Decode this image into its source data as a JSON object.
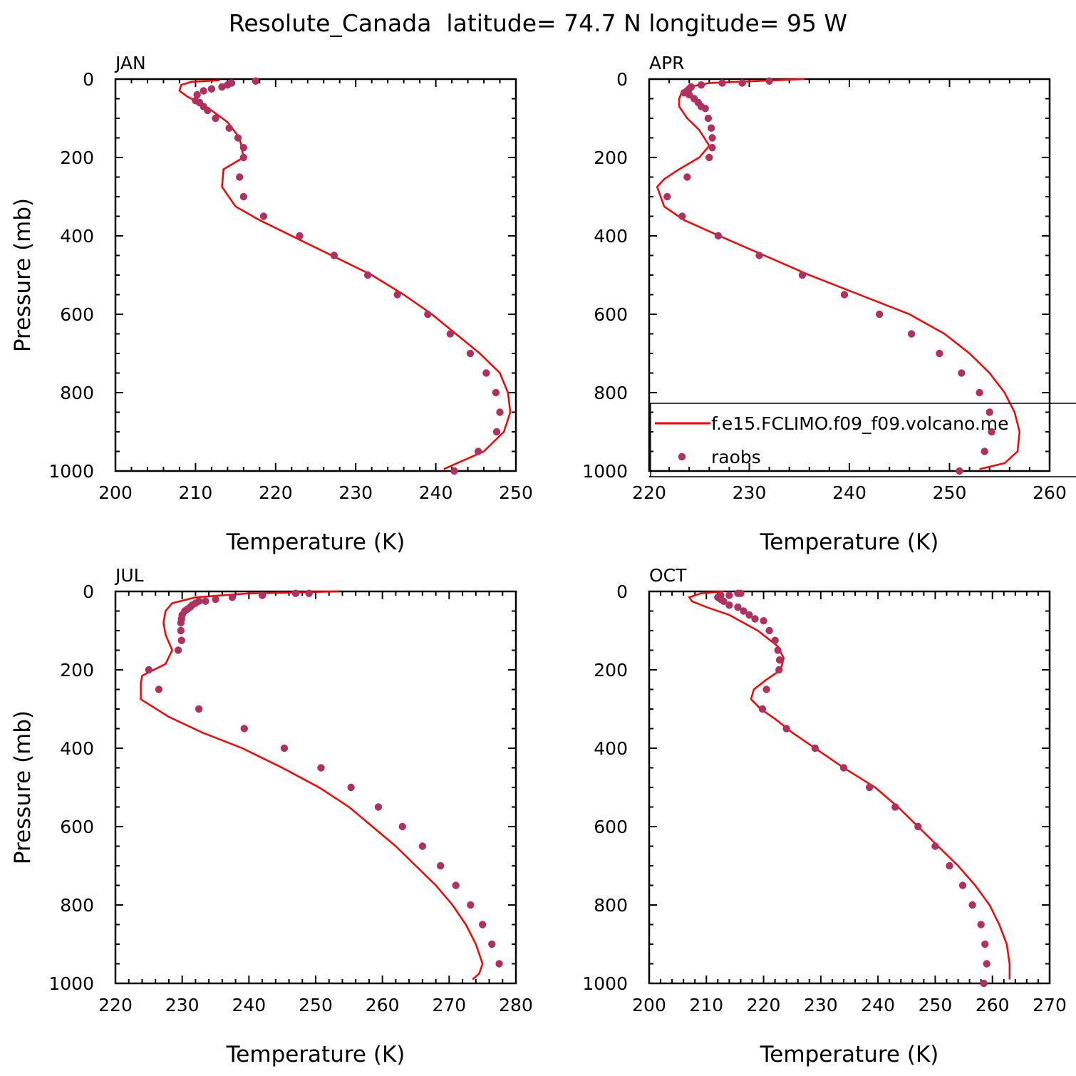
{
  "figure": {
    "title": "Resolute_Canada  latitude= 74.7 N longitude= 95 W"
  },
  "legend": {
    "placement": "lower-right of APR panel",
    "model_label": "f.e15.FCLIMO.f09_f09.volcano.me",
    "obs_label": "raobs"
  },
  "colors": {
    "model_line": "#ff0000",
    "obs_marker": "#b03060"
  },
  "chart_data": [
    {
      "type": "line+scatter",
      "panel_label": "JAN",
      "xlabel": "Temperature (K)",
      "ylabel": "Pressure (mb)",
      "xlim": [
        200,
        250
      ],
      "ylim": [
        1000,
        0
      ],
      "xticks": [
        200,
        210,
        220,
        230,
        240,
        250
      ],
      "yticks": [
        0,
        200,
        400,
        600,
        800,
        1000
      ],
      "model": {
        "name": "f.e15.FCLIMO.f09_f09.volcano.me",
        "t": [
          213.0,
          209.5,
          208.2,
          208.0,
          209.0,
          210.5,
          212.0,
          214.0,
          215.5,
          216.0,
          213.5,
          213.3,
          215.0,
          218.0,
          222.0,
          227.0,
          232.0,
          236.0,
          239.5,
          242.5,
          245.5,
          248.0,
          249.0,
          249.3,
          248.5,
          246.0,
          241.0
        ],
        "p": [
          3,
          7,
          15,
          30,
          45,
          60,
          80,
          110,
          150,
          200,
          230,
          275,
          325,
          360,
          400,
          450,
          500,
          550,
          600,
          650,
          700,
          750,
          800,
          850,
          900,
          950,
          995
        ]
      },
      "obs": {
        "name": "raobs",
        "t": [
          217.5,
          214.5,
          214.0,
          213.3,
          212.0,
          211.0,
          210.2,
          210.0,
          210.5,
          211.0,
          211.5,
          212.5,
          214.2,
          215.3,
          216.0,
          216.0,
          215.5,
          216.0,
          218.5,
          223.0,
          227.3,
          231.5,
          235.2,
          239.0,
          241.8,
          244.3,
          246.3,
          247.5,
          248.0,
          247.6,
          245.3,
          242.3
        ],
        "p": [
          5,
          10,
          15,
          20,
          25,
          30,
          40,
          55,
          60,
          70,
          80,
          100,
          125,
          150,
          175,
          200,
          250,
          300,
          350,
          400,
          450,
          500,
          550,
          600,
          650,
          700,
          750,
          800,
          850,
          900,
          950,
          1000
        ]
      }
    },
    {
      "type": "line+scatter",
      "panel_label": "APR",
      "xlabel": "Temperature (K)",
      "ylabel": "",
      "xlim": [
        220,
        260
      ],
      "ylim": [
        1000,
        0
      ],
      "xticks": [
        220,
        230,
        240,
        250,
        260
      ],
      "yticks": [
        0,
        200,
        400,
        600,
        800,
        1000
      ],
      "model": {
        "name": "f.e15.FCLIMO.f09_f09.volcano.me",
        "t": [
          235.5,
          226.0,
          224.0,
          223.3,
          223.0,
          223.0,
          223.8,
          225.0,
          226.0,
          225.0,
          223.0,
          221.5,
          220.8,
          221.5,
          223.5,
          227.0,
          231.5,
          236.0,
          241.0,
          246.0,
          249.5,
          252.0,
          254.0,
          255.5,
          256.5,
          257.0,
          256.8,
          255.5,
          253.0
        ],
        "p": [
          0,
          10,
          20,
          30,
          50,
          70,
          100,
          130,
          170,
          200,
          230,
          255,
          275,
          325,
          360,
          400,
          450,
          500,
          550,
          600,
          650,
          700,
          750,
          800,
          850,
          900,
          950,
          980,
          995
        ]
      },
      "obs": {
        "name": "raobs",
        "t": [
          232.0,
          229.3,
          227.3,
          225.2,
          224.2,
          224.0,
          223.8,
          223.5,
          224.0,
          224.5,
          224.9,
          225.2,
          225.6,
          225.9,
          226.2,
          226.3,
          226.3,
          226.0,
          223.8,
          221.8,
          223.3,
          226.9,
          231.0,
          235.3,
          239.5,
          243.0,
          246.2,
          249.0,
          251.2,
          253.0,
          254.0,
          254.2,
          253.5,
          251.0
        ],
        "p": [
          5,
          10,
          10,
          15,
          20,
          25,
          30,
          35,
          40,
          50,
          60,
          70,
          75,
          100,
          125,
          150,
          175,
          200,
          250,
          300,
          350,
          400,
          450,
          500,
          550,
          600,
          650,
          700,
          750,
          800,
          850,
          900,
          950,
          1000
        ]
      }
    },
    {
      "type": "line+scatter",
      "panel_label": "JUL",
      "xlabel": "Temperature (K)",
      "ylabel": "Pressure (mb)",
      "xlim": [
        220,
        280
      ],
      "ylim": [
        1000,
        0
      ],
      "xticks": [
        220,
        230,
        240,
        250,
        260,
        270,
        280
      ],
      "yticks": [
        0,
        200,
        400,
        600,
        800,
        1000
      ],
      "model": {
        "name": "f.e15.FCLIMO.f09_f09.volcano.me",
        "t": [
          253.5,
          240.0,
          232.0,
          228.5,
          227.5,
          227.2,
          227.5,
          228.5,
          227.5,
          224.0,
          223.8,
          223.8,
          228.0,
          233.0,
          239.0,
          245.0,
          250.5,
          255.0,
          258.5,
          262.0,
          265.0,
          268.0,
          270.5,
          272.5,
          274.0,
          275.0,
          274.5,
          273.5
        ],
        "p": [
          0,
          5,
          15,
          30,
          50,
          80,
          110,
          150,
          185,
          215,
          235,
          275,
          320,
          360,
          400,
          450,
          500,
          550,
          600,
          650,
          700,
          750,
          800,
          850,
          900,
          950,
          975,
          990
        ]
      },
      "obs": {
        "name": "raobs",
        "t": [
          249.0,
          247.0,
          242.0,
          237.5,
          235.0,
          233.5,
          232.5,
          232.0,
          231.5,
          231.2,
          230.8,
          230.4,
          230.0,
          229.9,
          229.8,
          229.8,
          229.9,
          229.4,
          225.0,
          226.5,
          232.5,
          239.3,
          245.3,
          250.8,
          255.3,
          259.4,
          263.0,
          266.0,
          268.7,
          271.0,
          273.2,
          275.0,
          276.4,
          277.5
        ],
        "p": [
          5,
          5,
          10,
          15,
          20,
          25,
          25,
          30,
          35,
          40,
          45,
          50,
          60,
          70,
          80,
          100,
          125,
          150,
          200,
          250,
          300,
          350,
          400,
          450,
          500,
          550,
          600,
          650,
          700,
          750,
          800,
          850,
          900,
          950
        ]
      }
    },
    {
      "type": "line+scatter",
      "panel_label": "OCT",
      "xlabel": "Temperature (K)",
      "ylabel": "",
      "xlim": [
        200,
        270
      ],
      "ylim": [
        1000,
        0
      ],
      "xticks": [
        200,
        210,
        220,
        230,
        240,
        250,
        260,
        270
      ],
      "yticks": [
        0,
        200,
        400,
        600,
        800,
        1000
      ],
      "model": {
        "name": "f.e15.FCLIMO.f09_f09.volcano.me",
        "t": [
          213.0,
          209.0,
          207.0,
          207.5,
          210.0,
          214.0,
          219.0,
          222.5,
          223.5,
          223.0,
          220.5,
          218.3,
          217.8,
          219.5,
          222.0,
          225.0,
          229.0,
          234.0,
          239.5,
          243.5,
          247.0,
          250.5,
          254.0,
          257.0,
          259.5,
          261.2,
          262.5,
          263.0,
          263.0
        ],
        "p": [
          0,
          5,
          15,
          25,
          40,
          60,
          100,
          140,
          170,
          200,
          225,
          250,
          275,
          300,
          325,
          360,
          400,
          450,
          500,
          550,
          600,
          650,
          700,
          750,
          800,
          850,
          900,
          950,
          990
        ]
      },
      "obs": {
        "name": "raobs",
        "t": [
          216.0,
          215.5,
          214.0,
          212.5,
          212.0,
          212.5,
          213.0,
          214.0,
          215.5,
          216.5,
          217.5,
          218.5,
          220.0,
          221.0,
          222.0,
          222.5,
          222.8,
          222.7,
          220.5,
          219.8,
          224.0,
          229.0,
          234.0,
          238.5,
          243.0,
          247.0,
          250.0,
          252.5,
          254.8,
          256.5,
          258.0,
          258.7,
          259.0,
          258.5
        ],
        "p": [
          5,
          5,
          10,
          10,
          15,
          20,
          25,
          35,
          40,
          50,
          60,
          70,
          75,
          100,
          125,
          150,
          175,
          200,
          250,
          300,
          350,
          400,
          450,
          500,
          550,
          600,
          650,
          700,
          750,
          800,
          850,
          900,
          950,
          1000
        ]
      }
    }
  ]
}
